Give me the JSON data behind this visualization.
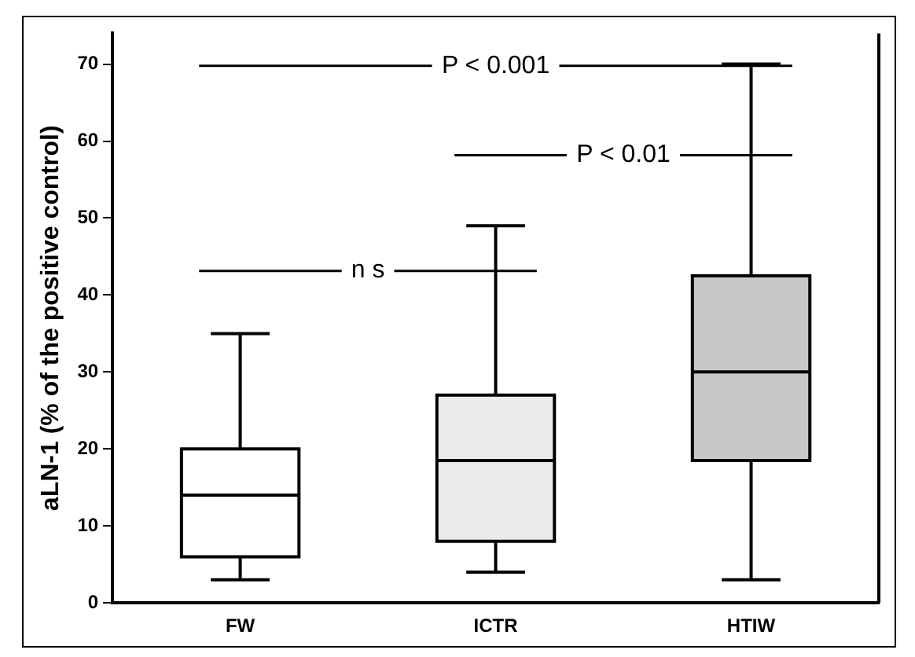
{
  "chart_data": {
    "type": "box",
    "ylabel": "aLN-1 (% of the positive control)",
    "categories": [
      "FW",
      "ICTR",
      "HTIW"
    ],
    "boxes": [
      {
        "low": 3,
        "q1": 6,
        "median": 14,
        "q3": 20,
        "high": 35
      },
      {
        "low": 4,
        "q1": 8,
        "median": 18.5,
        "q3": 27,
        "high": 49
      },
      {
        "low": 3,
        "q1": 18.5,
        "median": 30,
        "q3": 42.5,
        "high": 70
      }
    ],
    "colors": [
      "#ffffff",
      "#ebebeb",
      "#c8c8c8"
    ],
    "ylim": [
      0,
      74
    ],
    "yticks": [
      0,
      10,
      20,
      30,
      40,
      50,
      60,
      70
    ],
    "grid": false,
    "legend": false,
    "annotations": [
      "n s",
      "P < 0.01",
      "P < 0.001"
    ]
  }
}
